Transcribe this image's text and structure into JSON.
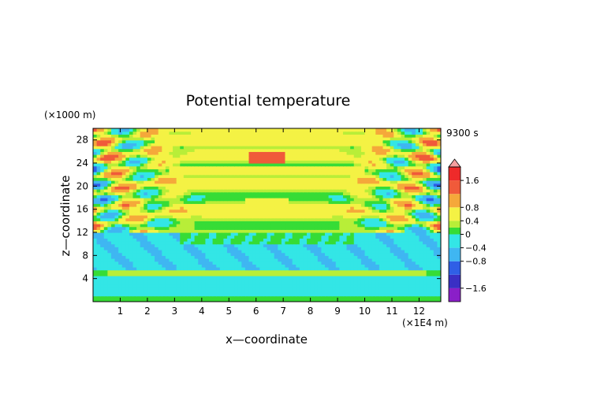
{
  "chart_data": {
    "type": "heatmap",
    "title": "Potential temperature",
    "xlabel": "x—coordinate",
    "ylabel": "z—coordinate",
    "x_unit_label": "(×1E4 m)",
    "y_unit_label": "(×1000 m)",
    "time_label": "9300 s",
    "xlim": [
      0,
      12.8
    ],
    "ylim": [
      0,
      30
    ],
    "x_ticks": [
      1,
      2,
      3,
      4,
      5,
      6,
      7,
      8,
      9,
      10,
      11,
      12
    ],
    "y_ticks": [
      4,
      8,
      12,
      16,
      20,
      24,
      28
    ],
    "colorbar": {
      "ticks": [
        {
          "value": 1.6,
          "label": "1.6"
        },
        {
          "value": 0.8,
          "label": "0.8"
        },
        {
          "value": 0.4,
          "label": "0.4"
        },
        {
          "value": 0,
          "label": "0"
        },
        {
          "value": -0.4,
          "label": "−0.4"
        },
        {
          "value": -0.8,
          "label": "−0.8"
        },
        {
          "value": -1.6,
          "label": "−1.6"
        }
      ],
      "levels": [
        {
          "min": -2.0,
          "max": -1.6,
          "color": "#8a1fc8"
        },
        {
          "min": -1.6,
          "max": -1.2,
          "color": "#3a2fc4"
        },
        {
          "min": -1.2,
          "max": -0.8,
          "color": "#2f5fe6"
        },
        {
          "min": -0.8,
          "max": -0.4,
          "color": "#3fb6f2"
        },
        {
          "min": -0.4,
          "max": 0.0,
          "color": "#33e6e6"
        },
        {
          "min": 0.0,
          "max": 0.2,
          "color": "#36dc36"
        },
        {
          "min": 0.2,
          "max": 0.4,
          "color": "#b8ee38"
        },
        {
          "min": 0.4,
          "max": 0.8,
          "color": "#f4f244"
        },
        {
          "min": 0.8,
          "max": 1.2,
          "color": "#f5a83a"
        },
        {
          "min": 1.2,
          "max": 1.6,
          "color": "#f05a3a"
        },
        {
          "min": 1.6,
          "max": 2.0,
          "color": "#ee2a2a"
        }
      ],
      "over_color": "#f4a0a0"
    },
    "field_features": [
      {
        "name": "base-layer",
        "x0": 0,
        "x1": 12.8,
        "y0": 0,
        "y1": 1.2,
        "value": 0.1
      },
      {
        "name": "low-negative-band",
        "x0": 0,
        "x1": 12.8,
        "y0": 1.2,
        "y1": 3.2,
        "value": -0.2
      },
      {
        "name": "low-positive-band",
        "x0": 0.5,
        "x1": 12.3,
        "y0": 4.6,
        "y1": 5.6,
        "value": 0.3
      },
      {
        "name": "mid-negative-band",
        "x0": 0,
        "x1": 12.8,
        "y0": 6.0,
        "y1": 12.0,
        "value": -0.3
      },
      {
        "name": "central-green-dome",
        "x0": 3.2,
        "x1": 9.6,
        "y0": 10.0,
        "y1": 15.5,
        "value": 0.05
      },
      {
        "name": "center-warm-anomaly-1",
        "x0": 5.7,
        "x1": 7.0,
        "y0": 24.2,
        "y1": 26.0,
        "value": 1.3
      },
      {
        "name": "center-warm-anomaly-2",
        "x0": 5.6,
        "x1": 7.2,
        "y0": 16.6,
        "y1": 17.8,
        "value": 0.5
      },
      {
        "name": "upper-yellow-band",
        "x0": 2.8,
        "x1": 10.0,
        "y0": 22.0,
        "y1": 23.4,
        "value": 0.5
      },
      {
        "name": "top-yellow-band",
        "x0": 0,
        "x1": 12.8,
        "y0": 27.2,
        "y1": 29.0,
        "value": 0.45
      }
    ]
  }
}
